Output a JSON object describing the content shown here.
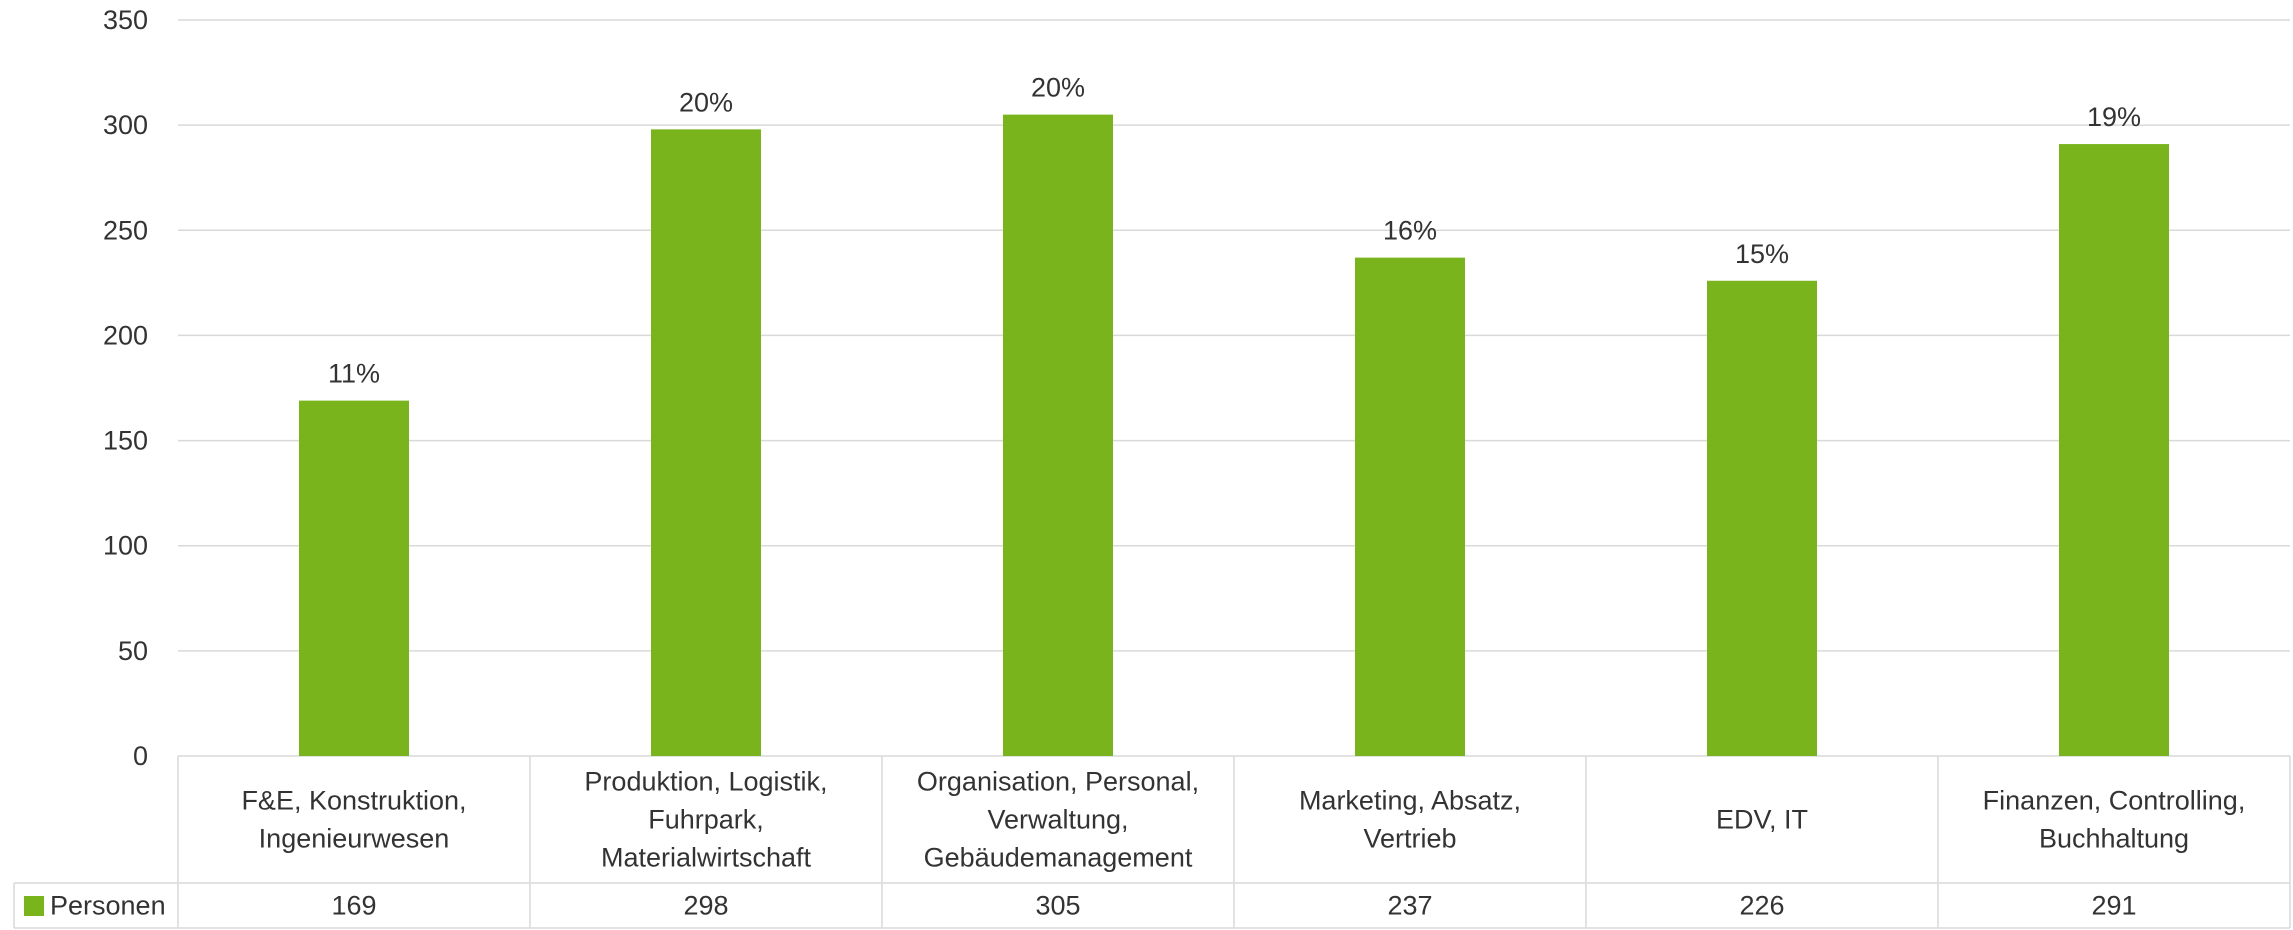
{
  "chart_data": {
    "type": "bar",
    "categories": [
      [
        "F&E, Konstruktion,",
        "Ingenieurwesen"
      ],
      [
        "Produktion, Logistik,",
        "Fuhrpark,",
        "Materialwirtschaft"
      ],
      [
        "Organisation, Personal,",
        "Verwaltung,",
        "Gebäudemanagement"
      ],
      [
        "Marketing, Absatz,",
        "Vertrieb"
      ],
      [
        "EDV, IT"
      ],
      [
        "Finanzen, Controlling,",
        "Buchhaltung"
      ]
    ],
    "series": [
      {
        "name": "Personen",
        "values": [
          169,
          298,
          305,
          237,
          226,
          291
        ],
        "data_labels": [
          "11%",
          "20%",
          "20%",
          "16%",
          "15%",
          "19%"
        ],
        "color": "#7AB41D"
      }
    ],
    "ylim": [
      0,
      350
    ],
    "yticks": [
      0,
      50,
      100,
      150,
      200,
      250,
      300,
      350
    ],
    "grid": true,
    "data_table": true,
    "colors": {
      "grid": "#D9D9D9",
      "text": "#333333"
    }
  }
}
